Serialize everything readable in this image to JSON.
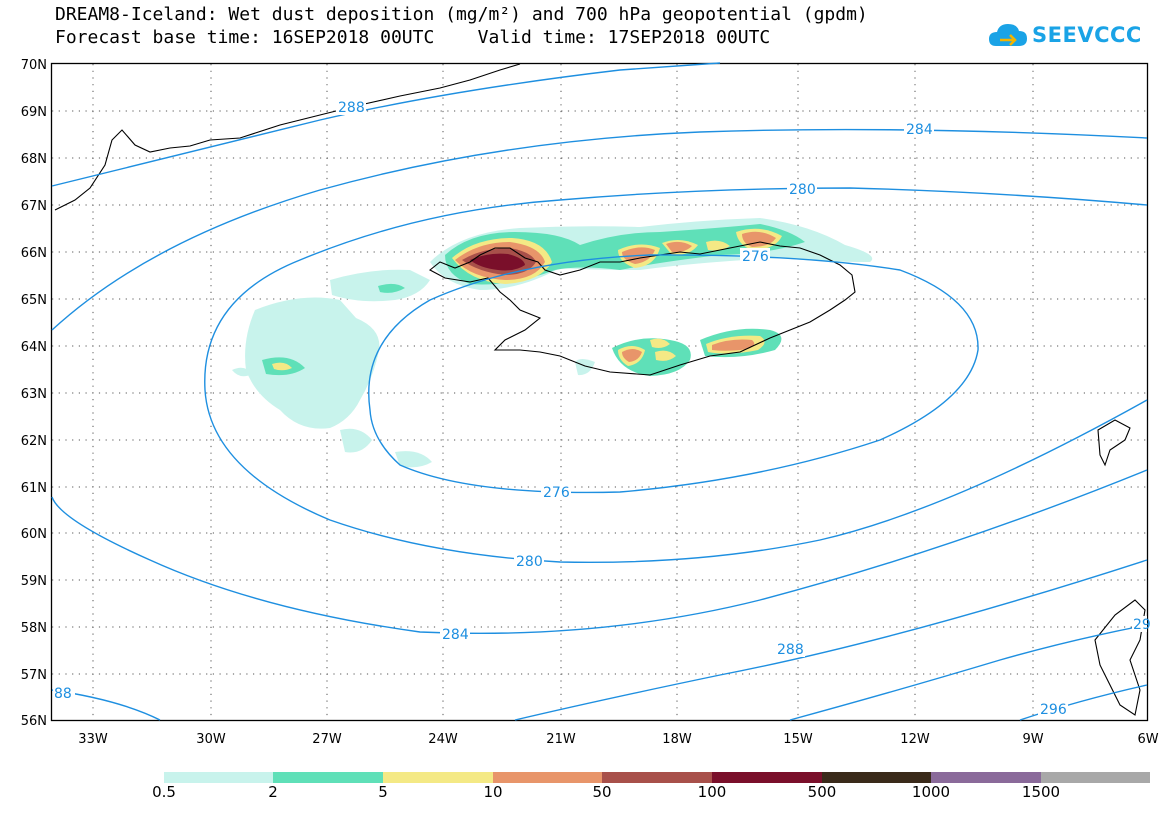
{
  "header": {
    "title": "DREAM8-Iceland: Wet dust deposition (mg/m²) and 700 hPa geopotential (gpdm)",
    "subtitle": "Forecast base time: 16SEP2018 00UTC    Valid time: 17SEP2018 00UTC"
  },
  "logo": {
    "text": "SEEVCCC",
    "icon": "cloud-icon",
    "color": "#1aa3e6"
  },
  "map": {
    "lat_labels": [
      "70N",
      "69N",
      "68N",
      "67N",
      "66N",
      "65N",
      "64N",
      "63N",
      "62N",
      "61N",
      "60N",
      "59N",
      "58N",
      "57N",
      "56N"
    ],
    "lon_labels": [
      "33W",
      "30W",
      "27W",
      "24W",
      "21W",
      "18W",
      "15W",
      "12W",
      "9W",
      "6W"
    ],
    "contour_color": "#1e8fe0",
    "contour_labels": [
      "288",
      "284",
      "280",
      "276",
      "276",
      "280",
      "284",
      "288",
      "296",
      "88",
      "29"
    ]
  },
  "legend": {
    "labels": [
      "0.5",
      "2",
      "5",
      "10",
      "50",
      "100",
      "500",
      "1000",
      "1500"
    ],
    "colors": [
      "#c8f3ec",
      "#5fe0b8",
      "#f4e985",
      "#e8956a",
      "#a8504a",
      "#7a0f2a",
      "#3a2a1a",
      "#8a6a9a",
      "#a8a8a8"
    ]
  }
}
